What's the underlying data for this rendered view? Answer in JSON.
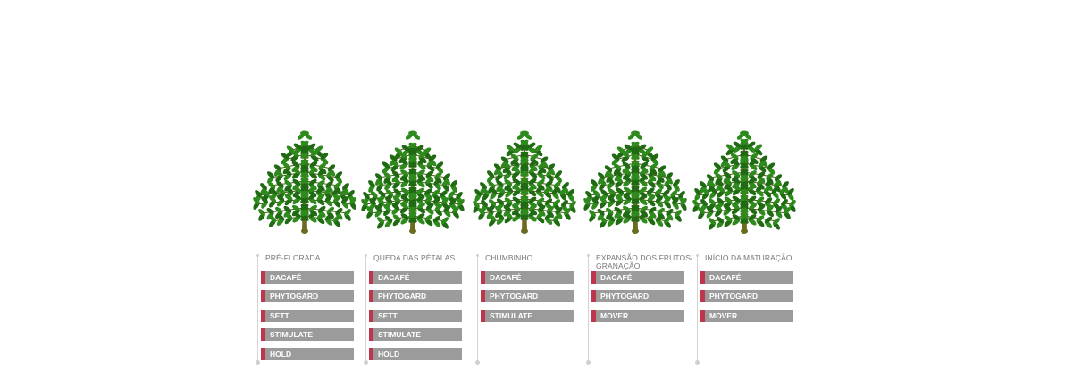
{
  "stages": [
    {
      "title": "PRÉ-FLORADA",
      "products": [
        "DACAFÉ",
        "PHYTOGARD",
        "SETT",
        "STIMULATE",
        "HOLD"
      ]
    },
    {
      "title": "QUEDA DAS PÉTALAS",
      "products": [
        "DACAFÉ",
        "PHYTOGARD",
        "SETT",
        "STIMULATE",
        "HOLD"
      ]
    },
    {
      "title": "CHUMBINHO",
      "products": [
        "DACAFÉ",
        "PHYTOGARD",
        "STIMULATE"
      ]
    },
    {
      "title": "EXPANSÃO DOS FRUTOS/ GRANAÇÃO",
      "products": [
        "DACAFÉ",
        "PHYTOGARD",
        "MOVER"
      ]
    },
    {
      "title": "INÍCIO DA MATURAÇÃO",
      "products": [
        "DACAFÉ",
        "PHYTOGARD",
        "MOVER"
      ]
    }
  ],
  "colors": {
    "accent": "#c0354e",
    "product_bar": "#9b9b9b",
    "label_text": "#777777",
    "leaf": "#2f8a1e",
    "leaf_dark": "#1f6a12",
    "trunk": "#6b6b1f"
  },
  "icons": {
    "plant": "coffee-plant-icon"
  }
}
